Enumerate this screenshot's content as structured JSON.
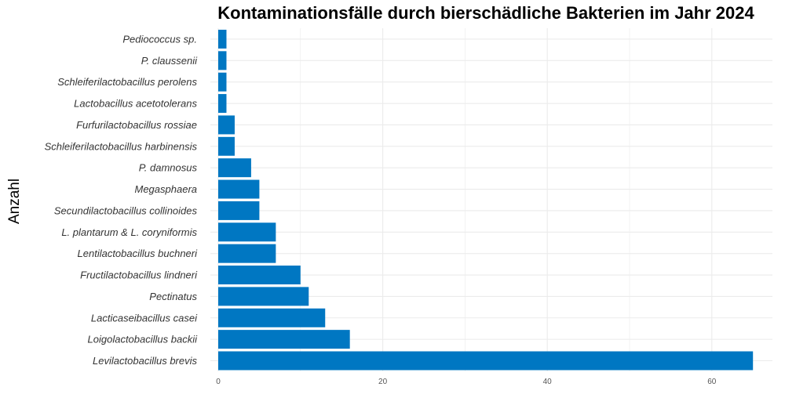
{
  "chart_data": {
    "type": "bar",
    "orientation": "horizontal",
    "title": "Kontaminationsfälle durch bierschädliche Bakterien im Jahr 2024",
    "ylabel": "Anzahl",
    "xlabel": "",
    "categories": [
      "Levilactobacillus brevis",
      "Loigolactobacillus backii",
      "Lacticaseibacillus casei",
      "Pectinatus",
      "Fructilactobacillus lindneri",
      "Lentilactobacillus buchneri",
      "L. plantarum & L. coryniformis",
      "Secundilactobacillus collinoides",
      "Megasphaera",
      "P. damnosus",
      "Schleiferilactobacillus harbinensis",
      "Furfurilactobacillus rossiae",
      "Lactobacillus acetotolerans",
      "Schleiferilactobacillus perolens",
      "P. claussenii",
      "Pediococcus sp."
    ],
    "values": [
      65,
      16,
      13,
      11,
      10,
      7,
      7,
      5,
      5,
      4,
      2,
      2,
      1,
      1,
      1,
      1
    ],
    "xlim": [
      0,
      68
    ],
    "xticks": [
      0,
      20,
      40,
      60
    ],
    "grid": true,
    "bar_color": "#0077C2",
    "grid_color": "#EBEBEB"
  }
}
